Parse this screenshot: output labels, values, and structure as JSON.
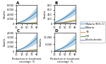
{
  "chart_data": [
    {
      "type": "line",
      "title": "A",
      "x": [
        10,
        20,
        30,
        40,
        50,
        60,
        70,
        80,
        90
      ],
      "xlim": [
        10,
        90
      ],
      "xticks": [
        10,
        30,
        50,
        70,
        90
      ],
      "ylim": [
        0,
        8000
      ],
      "yticks": [
        0,
        {
          "value": 2000,
          "label": "2,000"
        },
        {
          "value": 4000,
          "label": "4,000"
        },
        {
          "value": 6000,
          "label": "6,000"
        },
        {
          "value": 8000,
          "label": "8,000"
        }
      ],
      "ylabel": "Deaths",
      "legend": "center right",
      "series": [
        {
          "name": "Malaria 95% CI",
          "type": "area",
          "lower": [
            100,
            250,
            450,
            720,
            1050,
            1450,
            1920,
            2470,
            3080
          ],
          "upper": [
            300,
            700,
            1200,
            1900,
            2700,
            3700,
            4800,
            6100,
            7500
          ],
          "color": "#1f77b4"
        },
        {
          "name": "Malaria",
          "values": [
            190,
            450,
            810,
            1270,
            1840,
            2540,
            3320,
            4250,
            5230
          ],
          "color": "#1f77b4"
        },
        {
          "name": "TB",
          "values": [
            30,
            65,
            105,
            150,
            200,
            255,
            315,
            380,
            450
          ],
          "color": "#ff7f0e"
        },
        {
          "name": "HIV",
          "values": [
            20,
            45,
            73,
            105,
            140,
            178,
            220,
            266,
            315
          ],
          "color": "#2ca02c"
        },
        {
          "name": "Ebola deaths",
          "values": [
            15,
            25,
            32,
            37,
            40,
            42,
            44,
            45,
            46
          ],
          "color": "#9467bd"
        }
      ]
    },
    {
      "type": "line",
      "title": "B",
      "x": [
        10,
        20,
        30,
        40,
        50,
        60,
        70,
        80,
        90
      ],
      "xlim": [
        10,
        90
      ],
      "xticks": [
        10,
        30,
        50,
        70,
        90
      ],
      "ylim": [
        0,
        800
      ],
      "yticks": [
        0,
        200,
        400,
        600,
        800
      ],
      "ylabel": "Deaths",
      "series": [
        {
          "name": "Malaria 95% CI",
          "type": "area",
          "lower": [
            30,
            62,
            98,
            138,
            183,
            232,
            285,
            342,
            403
          ],
          "upper": [
            60,
            120,
            190,
            265,
            350,
            440,
            540,
            645,
            760
          ],
          "color": "#1f77b4"
        },
        {
          "name": "Malaria",
          "values": [
            45,
            91,
            143,
            201,
            265,
            335,
            411,
            493,
            580
          ],
          "color": "#1f77b4"
        },
        {
          "name": "TB",
          "values": [
            12,
            24,
            38,
            53,
            70,
            88,
            108,
            129,
            152
          ],
          "color": "#ff7f0e"
        },
        {
          "name": "HIV",
          "values": [
            8,
            17,
            27,
            38,
            50,
            63,
            77,
            93,
            110
          ],
          "color": "#2ca02c"
        },
        {
          "name": "Ebola deaths",
          "values": [
            5,
            9,
            12,
            14,
            15,
            16,
            17,
            17,
            18
          ],
          "color": "#9467bd"
        }
      ]
    },
    {
      "type": "line",
      "title": "C",
      "x": [
        10,
        20,
        30,
        40,
        50,
        60,
        70,
        80,
        90
      ],
      "xlim": [
        10,
        90
      ],
      "xticks": [
        10,
        30,
        50,
        70,
        90
      ],
      "ylim": [
        0,
        4000
      ],
      "yticks": [
        0,
        {
          "value": 1000,
          "label": "1,000"
        },
        {
          "value": 2000,
          "label": "2,000"
        },
        {
          "value": 3000,
          "label": "3,000"
        },
        {
          "value": 4000,
          "label": "4,000"
        }
      ],
      "xlabel": "Reduction in treatment coverage, %",
      "ylabel": "Deaths",
      "series": [
        {
          "name": "Malaria 95% CI",
          "type": "area",
          "lower": [
            90,
            195,
            325,
            490,
            685,
            913,
            1175,
            1472,
            1804
          ],
          "upper": [
            200,
            430,
            720,
            1080,
            1510,
            2010,
            2590,
            3240,
            3970
          ],
          "color": "#1f77b4"
        },
        {
          "name": "Malaria",
          "values": [
            140,
            308,
            514,
            770,
            1076,
            1434,
            1848,
            2320,
            2852
          ],
          "color": "#1f77b4"
        },
        {
          "name": "TB",
          "values": [
            25,
            52,
            83,
            118,
            158,
            201,
            248,
            299,
            354
          ],
          "color": "#ff7f0e"
        },
        {
          "name": "HIV",
          "values": [
            15,
            33,
            54,
            78,
            105,
            135,
            168,
            204,
            243
          ],
          "color": "#2ca02c"
        },
        {
          "name": "Ebola deaths",
          "values": [
            10,
            17,
            22,
            26,
            28,
            30,
            31,
            32,
            33
          ],
          "color": "#9467bd"
        }
      ]
    },
    {
      "type": "line",
      "title": "D",
      "x": [
        10,
        20,
        30,
        40,
        50,
        60,
        70,
        80,
        90
      ],
      "xlim": [
        10,
        90
      ],
      "xticks": [
        10,
        30,
        50,
        70,
        90
      ],
      "ylim": [
        0,
        13000
      ],
      "yticks": [
        0,
        {
          "value": 5000,
          "label": "5,000"
        },
        {
          "value": 10000,
          "label": "10,000"
        }
      ],
      "xlabel": "Reduction in treatment coverage, %",
      "ylabel": "Deaths",
      "series": [
        {
          "name": "Malaria 95% CI",
          "type": "area",
          "lower": [
            220,
            505,
            870,
            1340,
            1910,
            2590,
            3380,
            4280,
            5280
          ],
          "upper": [
            560,
            1250,
            2100,
            3250,
            4550,
            6150,
            7950,
            9950,
            12200
          ],
          "color": "#1f77b4"
        },
        {
          "name": "Malaria",
          "values": [
            380,
            860,
            1470,
            2240,
            3140,
            4220,
            5480,
            6870,
            8480
          ],
          "color": "#1f77b4"
        },
        {
          "name": "TB",
          "values": [
            67,
            141,
            226,
            321,
            428,
            544,
            671,
            808,
            956
          ],
          "color": "#ff7f0e"
        },
        {
          "name": "HIV",
          "values": [
            43,
            95,
            154,
            221,
            295,
            376,
            465,
            563,
            668
          ],
          "color": "#2ca02c"
        },
        {
          "name": "Ebola deaths",
          "values": [
            30,
            51,
            66,
            77,
            83,
            88,
            92,
            94,
            97
          ],
          "color": "#9467bd"
        }
      ]
    }
  ]
}
